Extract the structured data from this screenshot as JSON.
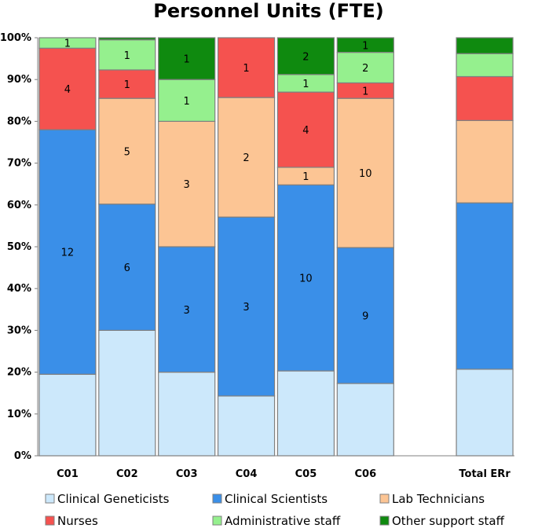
{
  "chart_data": {
    "type": "bar",
    "stacked": "percent",
    "title": "Personnel Units (FTE)",
    "xlabel": "",
    "ylabel": "",
    "ylim": [
      0,
      100
    ],
    "y_ticks": [
      "0%",
      "10%",
      "20%",
      "30%",
      "40%",
      "50%",
      "60%",
      "70%",
      "80%",
      "90%",
      "100%"
    ],
    "categories": [
      "C01",
      "C02",
      "C03",
      "C04",
      "C05",
      "C06",
      "",
      "Total ERr"
    ],
    "legend_position": "bottom",
    "series": [
      {
        "name": "Clinical Geneticists",
        "color": "#cce8fb",
        "percent": [
          19.5,
          30,
          20,
          14.3,
          20.3,
          17.3,
          null,
          20.7
        ],
        "labels": [
          "",
          "",
          "",
          "",
          "",
          "",
          "",
          ""
        ]
      },
      {
        "name": "Clinical Scientists",
        "color": "#3a8fe8",
        "percent": [
          58.5,
          30.2,
          30,
          42.8,
          44.5,
          32.5,
          null,
          39.8
        ],
        "labels": [
          "12",
          "6",
          "3",
          "3",
          "10",
          "9",
          "",
          ""
        ]
      },
      {
        "name": "Lab Technicians",
        "color": "#fcc594",
        "percent": [
          0,
          25.3,
          30,
          28.6,
          4.2,
          35.7,
          null,
          19.7
        ],
        "labels": [
          "",
          "5",
          "3",
          "2",
          "1",
          "10",
          "",
          ""
        ]
      },
      {
        "name": "Nurses",
        "color": "#f5524f",
        "percent": [
          19.5,
          6.8,
          0,
          14.3,
          18,
          3.7,
          null,
          10.5
        ],
        "labels": [
          "4",
          "1",
          "",
          "1",
          "4",
          "1",
          "",
          ""
        ]
      },
      {
        "name": "Administrative staff",
        "color": "#95f08e",
        "percent": [
          2.5,
          7.2,
          10,
          0,
          4.2,
          7.3,
          null,
          5.5
        ],
        "labels": [
          "1",
          "1",
          "1",
          "",
          "1",
          "2",
          "",
          ""
        ]
      },
      {
        "name": "Other support staff",
        "color": "#0f8a0f",
        "percent": [
          0,
          0.5,
          10,
          0,
          8.8,
          3.5,
          null,
          3.8
        ],
        "labels": [
          "",
          "",
          "1",
          "",
          "2",
          "1",
          "",
          ""
        ]
      }
    ]
  }
}
